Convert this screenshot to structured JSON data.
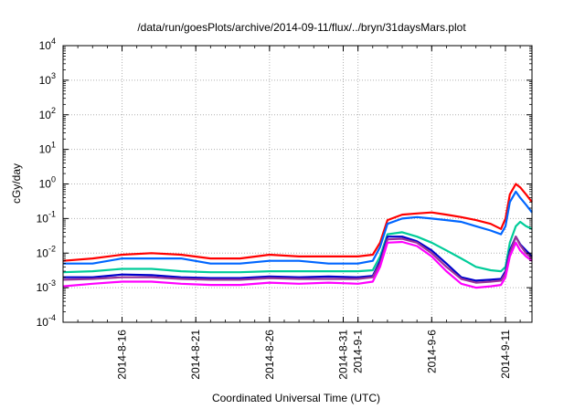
{
  "chart_data": {
    "type": "line",
    "title": "/data/run/goesPlots/archive/2014-09-11/flux/../bryn/31daysMars.plot",
    "xlabel": "Coordinated Universal Time (UTC)",
    "ylabel": "cGy/day",
    "yscale": "log",
    "ylim": [
      0.0001,
      10000
    ],
    "xlim": [
      "2014-08-12",
      "2014-09-12.8"
    ],
    "grid": true,
    "legend": "none",
    "y_ticks": [
      {
        "mant": "10",
        "exp": "4",
        "value": 10000
      },
      {
        "mant": "10",
        "exp": "3",
        "value": 1000
      },
      {
        "mant": "10",
        "exp": "2",
        "value": 100
      },
      {
        "mant": "10",
        "exp": "1",
        "value": 10
      },
      {
        "mant": "10",
        "exp": "0",
        "value": 1
      },
      {
        "mant": "10",
        "exp": "-1",
        "value": 0.1
      },
      {
        "mant": "10",
        "exp": "-2",
        "value": 0.01
      },
      {
        "mant": "10",
        "exp": "-3",
        "value": 0.001
      },
      {
        "mant": "10",
        "exp": "-4",
        "value": 0.0001
      }
    ],
    "x_ticks": [
      {
        "label": "2014-8-16",
        "x": "2014-08-16"
      },
      {
        "label": "2014-8-21",
        "x": "2014-08-21"
      },
      {
        "label": "2014-8-26",
        "x": "2014-08-26"
      },
      {
        "label": "2014-8-31",
        "x": "2014-08-31"
      },
      {
        "label": "2014-9-1",
        "x": "2014-09-01"
      },
      {
        "label": "2014-9-6",
        "x": "2014-09-06"
      },
      {
        "label": "2014-9-11",
        "x": "2014-09-11"
      }
    ],
    "series": [
      {
        "color": "#ff0000",
        "x": [
          "2014-08-12",
          "2014-08-14",
          "2014-08-16",
          "2014-08-18",
          "2014-08-20",
          "2014-08-22",
          "2014-08-24",
          "2014-08-26",
          "2014-08-28",
          "2014-08-30",
          "2014-09-01",
          "2014-09-02",
          "2014-09-02.5",
          "2014-09-03",
          "2014-09-04",
          "2014-09-05",
          "2014-09-06",
          "2014-09-07",
          "2014-09-08",
          "2014-09-09",
          "2014-09-10",
          "2014-09-10.7",
          "2014-09-11",
          "2014-09-11.3",
          "2014-09-11.7",
          "2014-09-12",
          "2014-09-12.4",
          "2014-09-12.8"
        ],
        "y": [
          0.006,
          0.007,
          0.009,
          0.01,
          0.009,
          0.007,
          0.007,
          0.009,
          0.008,
          0.008,
          0.008,
          0.009,
          0.02,
          0.09,
          0.13,
          0.14,
          0.15,
          0.13,
          0.11,
          0.09,
          0.07,
          0.05,
          0.1,
          0.5,
          1.0,
          0.8,
          0.5,
          0.3
        ]
      },
      {
        "color": "#0066ff",
        "x": [
          "2014-08-12",
          "2014-08-14",
          "2014-08-16",
          "2014-08-18",
          "2014-08-20",
          "2014-08-22",
          "2014-08-24",
          "2014-08-26",
          "2014-08-28",
          "2014-08-30",
          "2014-09-01",
          "2014-09-02",
          "2014-09-02.5",
          "2014-09-03",
          "2014-09-04",
          "2014-09-05",
          "2014-09-06",
          "2014-09-07",
          "2014-09-08",
          "2014-09-09",
          "2014-09-10",
          "2014-09-10.7",
          "2014-09-11",
          "2014-09-11.3",
          "2014-09-11.7",
          "2014-09-12",
          "2014-09-12.4",
          "2014-09-12.8"
        ],
        "y": [
          0.005,
          0.005,
          0.007,
          0.007,
          0.007,
          0.005,
          0.005,
          0.006,
          0.006,
          0.005,
          0.005,
          0.006,
          0.015,
          0.07,
          0.1,
          0.11,
          0.1,
          0.09,
          0.08,
          0.06,
          0.045,
          0.035,
          0.06,
          0.3,
          0.6,
          0.4,
          0.25,
          0.15
        ]
      },
      {
        "color": "#00cc99",
        "x": [
          "2014-08-12",
          "2014-08-14",
          "2014-08-16",
          "2014-08-18",
          "2014-08-20",
          "2014-08-22",
          "2014-08-24",
          "2014-08-26",
          "2014-08-28",
          "2014-08-30",
          "2014-09-01",
          "2014-09-02",
          "2014-09-02.5",
          "2014-09-03",
          "2014-09-04",
          "2014-09-05",
          "2014-09-06",
          "2014-09-07",
          "2014-09-08",
          "2014-09-09",
          "2014-09-10",
          "2014-09-10.7",
          "2014-09-11",
          "2014-09-11.3",
          "2014-09-11.7",
          "2014-09-12",
          "2014-09-12.4",
          "2014-09-12.8"
        ],
        "y": [
          0.0028,
          0.003,
          0.0035,
          0.0035,
          0.003,
          0.0028,
          0.0028,
          0.003,
          0.003,
          0.003,
          0.003,
          0.0032,
          0.008,
          0.035,
          0.04,
          0.03,
          0.02,
          0.012,
          0.007,
          0.004,
          0.0032,
          0.003,
          0.004,
          0.02,
          0.06,
          0.08,
          0.06,
          0.05
        ]
      },
      {
        "color": "#0000cc",
        "x": [
          "2014-08-12",
          "2014-08-14",
          "2014-08-16",
          "2014-08-18",
          "2014-08-20",
          "2014-08-22",
          "2014-08-24",
          "2014-08-26",
          "2014-08-28",
          "2014-08-30",
          "2014-09-01",
          "2014-09-02",
          "2014-09-02.5",
          "2014-09-03",
          "2014-09-04",
          "2014-09-05",
          "2014-09-06",
          "2014-09-07",
          "2014-09-08",
          "2014-09-09",
          "2014-09-10",
          "2014-09-10.7",
          "2014-09-11",
          "2014-09-11.3",
          "2014-09-11.7",
          "2014-09-12",
          "2014-09-12.4",
          "2014-09-12.8"
        ],
        "y": [
          0.002,
          0.002,
          0.0024,
          0.0023,
          0.002,
          0.0019,
          0.0019,
          0.0021,
          0.002,
          0.0021,
          0.002,
          0.0022,
          0.006,
          0.03,
          0.03,
          0.022,
          0.012,
          0.005,
          0.002,
          0.0016,
          0.0017,
          0.0018,
          0.003,
          0.012,
          0.03,
          0.018,
          0.012,
          0.008
        ]
      },
      {
        "color": "#993399",
        "x": [
          "2014-08-12",
          "2014-08-14",
          "2014-08-16",
          "2014-08-18",
          "2014-08-20",
          "2014-08-22",
          "2014-08-24",
          "2014-08-26",
          "2014-08-28",
          "2014-08-30",
          "2014-09-01",
          "2014-09-02",
          "2014-09-02.5",
          "2014-09-03",
          "2014-09-04",
          "2014-09-05",
          "2014-09-06",
          "2014-09-07",
          "2014-09-08",
          "2014-09-09",
          "2014-09-10",
          "2014-09-10.7",
          "2014-09-11",
          "2014-09-11.3",
          "2014-09-11.7",
          "2014-09-12",
          "2014-09-12.4",
          "2014-09-12.8"
        ],
        "y": [
          0.0017,
          0.0018,
          0.002,
          0.002,
          0.0018,
          0.0017,
          0.0017,
          0.0019,
          0.0018,
          0.0018,
          0.0018,
          0.002,
          0.005,
          0.025,
          0.026,
          0.02,
          0.01,
          0.004,
          0.0018,
          0.0014,
          0.0015,
          0.0016,
          0.0026,
          0.01,
          0.03,
          0.017,
          0.01,
          0.007
        ]
      },
      {
        "color": "#ff00ff",
        "x": [
          "2014-08-12",
          "2014-08-14",
          "2014-08-16",
          "2014-08-18",
          "2014-08-20",
          "2014-08-22",
          "2014-08-24",
          "2014-08-26",
          "2014-08-28",
          "2014-08-30",
          "2014-09-01",
          "2014-09-02",
          "2014-09-02.5",
          "2014-09-03",
          "2014-09-04",
          "2014-09-05",
          "2014-09-06",
          "2014-09-07",
          "2014-09-08",
          "2014-09-09",
          "2014-09-10",
          "2014-09-10.7",
          "2014-09-11",
          "2014-09-11.3",
          "2014-09-11.7",
          "2014-09-12",
          "2014-09-12.4",
          "2014-09-12.8"
        ],
        "y": [
          0.0011,
          0.0013,
          0.0015,
          0.0015,
          0.0013,
          0.0012,
          0.0012,
          0.0014,
          0.0013,
          0.0014,
          0.0013,
          0.0015,
          0.004,
          0.02,
          0.021,
          0.016,
          0.008,
          0.003,
          0.0013,
          0.001,
          0.0011,
          0.0012,
          0.002,
          0.008,
          0.02,
          0.012,
          0.008,
          0.006
        ]
      }
    ]
  }
}
